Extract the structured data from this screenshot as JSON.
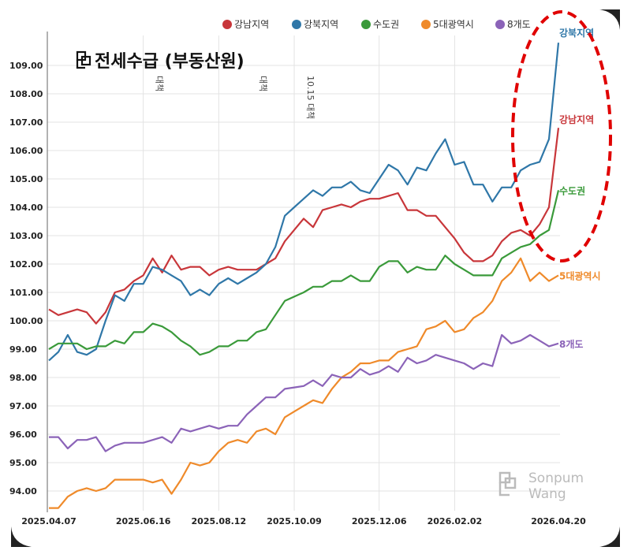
{
  "chart_data": {
    "type": "line",
    "title": "전세수급 (부동산원)",
    "xlabel": "",
    "ylabel": "",
    "ylim": [
      93.4,
      109.8
    ],
    "yticks": [
      "94.00",
      "95.00",
      "96.00",
      "97.00",
      "98.00",
      "99.00",
      "100.00",
      "101.00",
      "102.00",
      "103.00",
      "104.00",
      "105.00",
      "106.00",
      "107.00",
      "108.00",
      "109.00"
    ],
    "xtick_labels": [
      {
        "label": "2025.04.07",
        "index": 0
      },
      {
        "label": "2025.06.16",
        "index": 10
      },
      {
        "label": "2025.08.12",
        "index": 18
      },
      {
        "label": "2025.10.09",
        "index": 26
      },
      {
        "label": "2025.12.06",
        "index": 35
      },
      {
        "label": "2026.02.02",
        "index": 43
      },
      {
        "label": "2026.04.20",
        "index": 54
      }
    ],
    "grid": true,
    "legend": "top-right",
    "annotations": [
      {
        "text": "대책",
        "index": 11
      },
      {
        "text": "대책",
        "index": 22
      },
      {
        "text": "10.15 대책",
        "index": 27
      }
    ],
    "series": [
      {
        "name": "강남지역",
        "color": "#c8363a",
        "values": [
          100.4,
          100.2,
          100.3,
          100.4,
          100.3,
          99.9,
          100.3,
          101.0,
          101.1,
          101.4,
          101.6,
          102.2,
          101.7,
          102.3,
          101.8,
          101.9,
          101.9,
          101.6,
          101.8,
          101.9,
          101.8,
          101.8,
          101.8,
          102.0,
          102.2,
          102.8,
          103.2,
          103.6,
          103.3,
          103.9,
          104.0,
          104.1,
          104.0,
          104.2,
          104.3,
          104.3,
          104.4,
          104.5,
          103.9,
          103.9,
          103.7,
          103.7,
          103.3,
          102.9,
          102.4,
          102.1,
          102.1,
          102.3,
          102.8,
          103.1,
          103.2,
          103.0,
          103.4,
          104.0,
          106.8
        ]
      },
      {
        "name": "강북지역",
        "color": "#2f77a8",
        "values": [
          98.6,
          98.9,
          99.5,
          98.9,
          98.8,
          99.0,
          100.0,
          100.9,
          100.7,
          101.3,
          101.3,
          101.9,
          101.8,
          101.6,
          101.4,
          100.9,
          101.1,
          100.9,
          101.3,
          101.5,
          101.3,
          101.5,
          101.7,
          102.0,
          102.6,
          103.7,
          104.0,
          104.3,
          104.6,
          104.4,
          104.7,
          104.7,
          104.9,
          104.6,
          104.5,
          105.0,
          105.5,
          105.3,
          104.8,
          105.4,
          105.3,
          105.9,
          106.4,
          105.5,
          105.6,
          104.8,
          104.8,
          104.2,
          104.7,
          104.7,
          105.3,
          105.5,
          105.6,
          106.4,
          109.8
        ]
      },
      {
        "name": "수도권",
        "color": "#3a9a3a",
        "values": [
          99.0,
          99.2,
          99.2,
          99.2,
          99.0,
          99.1,
          99.1,
          99.3,
          99.2,
          99.6,
          99.6,
          99.9,
          99.8,
          99.6,
          99.3,
          99.1,
          98.8,
          98.9,
          99.1,
          99.1,
          99.3,
          99.3,
          99.6,
          99.7,
          100.2,
          100.7,
          100.85,
          101.0,
          101.2,
          101.2,
          101.4,
          101.4,
          101.6,
          101.4,
          101.4,
          101.9,
          102.1,
          102.1,
          101.7,
          101.9,
          101.8,
          101.8,
          102.3,
          102.0,
          101.8,
          101.6,
          101.6,
          101.6,
          102.2,
          102.4,
          102.6,
          102.7,
          103.0,
          103.2,
          104.6
        ]
      },
      {
        "name": "5대광역시",
        "color": "#ef8a2a",
        "values": [
          93.4,
          93.4,
          93.8,
          94.0,
          94.1,
          94.0,
          94.1,
          94.4,
          94.4,
          94.4,
          94.4,
          94.3,
          94.4,
          93.9,
          94.4,
          95.0,
          94.9,
          95.0,
          95.4,
          95.7,
          95.8,
          95.7,
          96.1,
          96.2,
          96.0,
          96.6,
          96.8,
          97.0,
          97.2,
          97.1,
          97.6,
          98.0,
          98.2,
          98.5,
          98.5,
          98.6,
          98.6,
          98.9,
          99.0,
          99.1,
          99.7,
          99.8,
          100.0,
          99.6,
          99.7,
          100.1,
          100.3,
          100.7,
          101.4,
          101.7,
          102.2,
          101.4,
          101.7,
          101.4,
          101.6
        ]
      },
      {
        "name": "8개도",
        "color": "#8b63b8",
        "values": [
          95.9,
          95.9,
          95.5,
          95.8,
          95.8,
          95.9,
          95.4,
          95.6,
          95.7,
          95.7,
          95.7,
          95.8,
          95.9,
          95.7,
          96.2,
          96.1,
          96.2,
          96.3,
          96.2,
          96.3,
          96.3,
          96.7,
          97.0,
          97.3,
          97.3,
          97.6,
          97.65,
          97.7,
          97.9,
          97.7,
          98.1,
          98.0,
          98.0,
          98.3,
          98.1,
          98.2,
          98.4,
          98.2,
          98.7,
          98.5,
          98.6,
          98.8,
          98.7,
          98.6,
          98.5,
          98.3,
          98.5,
          98.4,
          99.5,
          99.2,
          99.3,
          99.5,
          99.3,
          99.1,
          99.2
        ]
      }
    ],
    "highlight": {
      "shape": "dashed-ellipse",
      "color": "#e00000"
    }
  },
  "watermark": {
    "line1": "Sonpum",
    "line2": "Wang"
  }
}
